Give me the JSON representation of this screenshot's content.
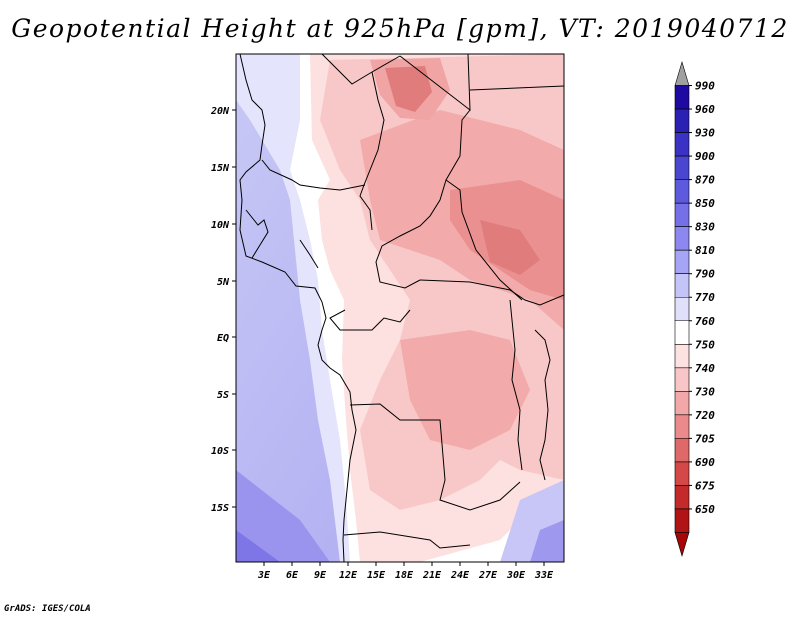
{
  "title": "Geopotential Height at 925hPa [gpm], VT: 2019040712",
  "footer": "GrADS: IGES/COLA",
  "map": {
    "lat_labels": [
      "20N",
      "15N",
      "10N",
      "5N",
      "EQ",
      "5S",
      "10S",
      "15S"
    ],
    "lon_labels": [
      "3E",
      "6E",
      "9E",
      "12E",
      "15E",
      "18E",
      "21E",
      "24E",
      "27E",
      "30E",
      "33E"
    ]
  },
  "colorbar": {
    "labels": [
      "990",
      "960",
      "930",
      "900",
      "870",
      "850",
      "830",
      "810",
      "790",
      "770",
      "760",
      "750",
      "740",
      "730",
      "720",
      "705",
      "690",
      "675",
      "650"
    ],
    "colors": [
      "#a0a0a0",
      "#1e0aa0",
      "#2a20b4",
      "#3a32c4",
      "#4a46d0",
      "#5e5ade",
      "#7570e8",
      "#8c88f0",
      "#a6a4f4",
      "#c4c4f8",
      "#e0e0fb",
      "#ffffff",
      "#fde2e2",
      "#f8c6c6",
      "#f2a8a8",
      "#ea8a8a",
      "#df6868",
      "#d44848",
      "#c42a2a",
      "#b01414",
      "#a60606"
    ]
  }
}
